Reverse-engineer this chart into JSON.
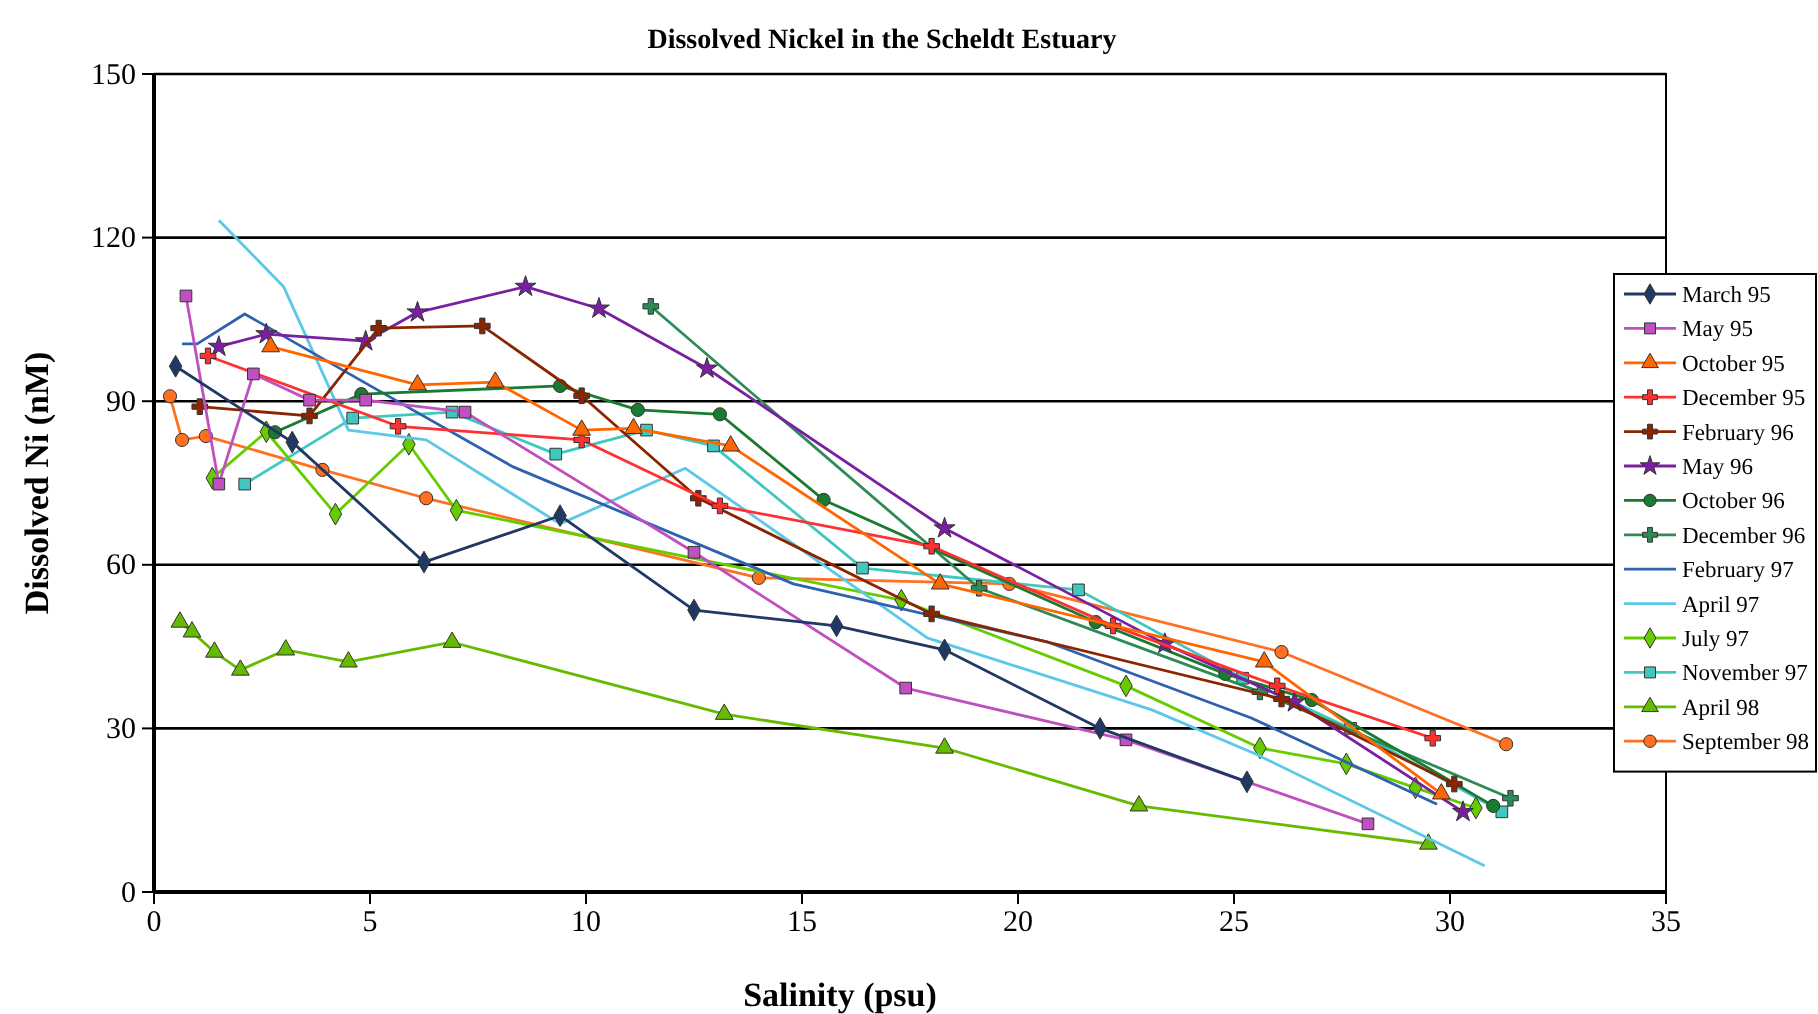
{
  "chart_data": {
    "type": "line",
    "title": "Dissolved Nickel in the Scheldt Estuary",
    "xlabel": "Salinity (psu)",
    "ylabel": "Dissolved Ni (nM)",
    "xlim": [
      0,
      35
    ],
    "xticks": [
      0,
      5,
      10,
      15,
      20,
      25,
      30,
      35
    ],
    "ylim": [
      0,
      150
    ],
    "yticks": [
      0,
      30,
      60,
      90,
      120,
      150
    ],
    "grid": "y",
    "legend": "right",
    "line_style": "solid",
    "series": [
      {
        "name": "March 95",
        "color": "#1f3864",
        "marker": "diamond",
        "x": [
          0.5,
          3.2,
          6.25,
          9.4,
          12.5,
          15.8,
          18.3,
          21.9,
          25.3
        ],
        "values": [
          96.4,
          82.5,
          60.5,
          69,
          51.7,
          48.8,
          44.4,
          30,
          20.2
        ]
      },
      {
        "name": "May 95",
        "color": "#c050c0",
        "marker": "square",
        "x": [
          0.74,
          1.5,
          2.3,
          3.6,
          4.9,
          7.2,
          12.5,
          17.4,
          22.5,
          28.1
        ],
        "values": [
          109.3,
          74.8,
          95,
          90.2,
          90.2,
          88,
          62.3,
          37.4,
          27.9,
          12.5
        ]
      },
      {
        "name": "October 95",
        "color": "#ff6600",
        "marker": "triangle",
        "x": [
          2.7,
          6.1,
          7.9,
          9.9,
          11.1,
          13.35,
          18.2,
          25.7,
          29.8
        ],
        "values": [
          100,
          93,
          93.5,
          84.7,
          85,
          81.8,
          56.5,
          42.2,
          18
        ]
      },
      {
        "name": "December 95",
        "color": "#ff3030",
        "marker": "cross",
        "x": [
          1.25,
          5.65,
          9.9,
          13.1,
          18,
          22.2,
          26,
          29.6
        ],
        "values": [
          98.3,
          85.4,
          82.9,
          70.8,
          63.4,
          48.8,
          37.8,
          28.2
        ]
      },
      {
        "name": "February 96",
        "color": "#8b2500",
        "marker": "cross",
        "x": [
          1.06,
          3.6,
          5.2,
          7.6,
          9.9,
          12.6,
          18,
          26.1,
          30.1
        ],
        "values": [
          89,
          87.3,
          103.4,
          103.8,
          91,
          72.2,
          51,
          35.4,
          19.8
        ]
      },
      {
        "name": "May 96",
        "color": "#7b1fa2",
        "marker": "star",
        "x": [
          1.5,
          2.6,
          4.9,
          6.1,
          8.6,
          10.3,
          12.8,
          18.3,
          23.4,
          26.4,
          30.3
        ],
        "values": [
          100,
          102.3,
          101,
          106.3,
          111,
          107,
          96,
          66.7,
          45.5,
          34.8,
          14.7
        ]
      },
      {
        "name": "October 96",
        "color": "#1a7a30",
        "marker": "circle",
        "x": [
          2.8,
          4.8,
          9.4,
          11.2,
          13.1,
          15.5,
          21.8,
          24.8,
          26.8,
          31
        ],
        "values": [
          84.3,
          91.3,
          92.8,
          88.4,
          87.6,
          71.9,
          49.5,
          40,
          35.2,
          15.8
        ]
      },
      {
        "name": "December 96",
        "color": "#2e8b57",
        "marker": "cross",
        "x": [
          11.5,
          19.1,
          25.6,
          31.4
        ],
        "values": [
          107.4,
          55.7,
          36.7,
          17.2
        ]
      },
      {
        "name": "February 97",
        "color": "#3060b0",
        "marker": "none",
        "x": [
          0.65,
          1,
          2.1,
          5.1,
          8.3,
          14.8,
          20.7,
          25.4,
          29.7
        ],
        "values": [
          100.5,
          100.5,
          106,
          92.4,
          78,
          56.5,
          45.8,
          31.9,
          16.1
        ]
      },
      {
        "name": "April 97",
        "color": "#5bc8e8",
        "marker": "none",
        "x": [
          1.5,
          3,
          4.5,
          6.3,
          9.4,
          12.3,
          17.9,
          23.1,
          25.5,
          30.8
        ],
        "values": [
          123.2,
          111,
          84.7,
          82.9,
          67.5,
          77.7,
          46.6,
          33.4,
          25.3,
          4.8
        ]
      },
      {
        "name": "July 97",
        "color": "#66cc00",
        "marker": "diamond",
        "x": [
          1.35,
          2.6,
          4.2,
          5.9,
          7,
          17.3,
          22.5,
          25.6,
          27.6,
          29.2,
          30.6
        ],
        "values": [
          75.9,
          84.4,
          69.3,
          82.1,
          70,
          53.5,
          37.8,
          26.4,
          23.5,
          19.1,
          15.4
        ]
      },
      {
        "name": "November 97",
        "color": "#40c8c0",
        "marker": "square",
        "x": [
          2.1,
          4.6,
          6.9,
          9.3,
          11.4,
          12.95,
          16.4,
          21.4,
          25.2,
          27.7,
          31.2
        ],
        "values": [
          74.8,
          86.9,
          88,
          80.3,
          84.7,
          81.8,
          59.4,
          55.4,
          39.2,
          30,
          14.7
        ]
      },
      {
        "name": "April 98",
        "color": "#66bb00",
        "marker": "triangle",
        "x": [
          0.6,
          0.88,
          1.4,
          2,
          3.05,
          4.5,
          6.9,
          13.2,
          18.3,
          22.8,
          29.5
        ],
        "values": [
          49.5,
          47.7,
          44,
          40.7,
          44.4,
          42.2,
          45.8,
          32.6,
          26.4,
          15.8,
          8.8
        ]
      },
      {
        "name": "September 98",
        "color": "#ff7020",
        "marker": "circle",
        "x": [
          0.37,
          0.65,
          1.2,
          3.9,
          6.3,
          14,
          19.8,
          26.1,
          31.3
        ],
        "values": [
          90.9,
          82.9,
          83.6,
          77.4,
          72.2,
          57.6,
          56.5,
          44,
          27.1
        ]
      }
    ]
  }
}
